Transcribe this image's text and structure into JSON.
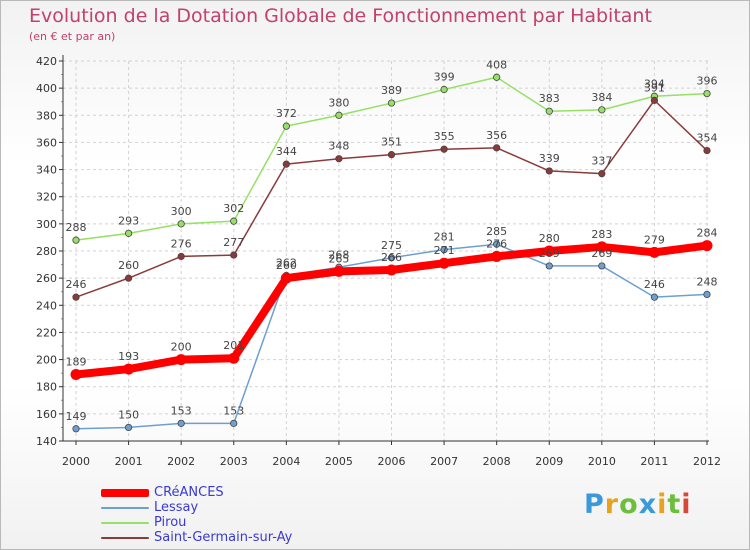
{
  "title": "Evolution de la Dotation Globale de Fonctionnement par Habitant",
  "subtitle": "(en € et par an)",
  "logo_text": "Proxiti",
  "logo_colors": [
    "#3a9ad9",
    "#e8a31e",
    "#6cbf3a",
    "#3a9ad9",
    "#e8a31e",
    "#6cbf3a",
    "#d9463a"
  ],
  "chart_data": {
    "type": "line",
    "title": "Evolution de la Dotation Globale de Fonctionnement par Habitant",
    "subtitle": "(en € et par an)",
    "xlabel": "",
    "ylabel": "",
    "x": [
      "2000",
      "2001",
      "2002",
      "2003",
      "2004",
      "2005",
      "2006",
      "2007",
      "2008",
      "2009",
      "2010",
      "2011",
      "2012"
    ],
    "ylim": [
      140,
      420
    ],
    "yticks": [
      "140",
      "160",
      "180",
      "200",
      "220",
      "240",
      "260",
      "280",
      "300",
      "320",
      "340",
      "360",
      "380",
      "400",
      "420"
    ],
    "grid": true,
    "series": [
      {
        "name": "CRéANCES",
        "color": "#ff0000",
        "width": 8,
        "values": [
          189,
          193,
          200,
          201,
          260,
          265,
          266,
          271,
          276,
          280,
          283,
          279,
          284
        ],
        "labels": [
          "189",
          "193",
          "200",
          "201",
          "260",
          "265",
          "266",
          "271",
          "276",
          "280",
          "283",
          "279",
          "284"
        ]
      },
      {
        "name": "Lessay",
        "color": "#6d9fd1",
        "width": 1.5,
        "values": [
          149,
          150,
          153,
          153,
          262,
          268,
          275,
          281,
          285,
          269,
          269,
          246,
          248
        ],
        "labels": [
          "149",
          "150",
          "153",
          "153",
          "262",
          "268",
          "275",
          "281",
          "285",
          "269",
          "269",
          "246",
          "248"
        ]
      },
      {
        "name": "Pirou",
        "color": "#96e066",
        "width": 1.5,
        "values": [
          288,
          293,
          300,
          302,
          372,
          380,
          389,
          399,
          408,
          383,
          384,
          394,
          396
        ],
        "labels": [
          "288",
          "293",
          "300",
          "302",
          "372",
          "380",
          "389",
          "399",
          "408",
          "383",
          "384",
          "394",
          "396"
        ]
      },
      {
        "name": "Saint-Germain-sur-Ay",
        "color": "#8b3a3a",
        "width": 1.5,
        "values": [
          246,
          260,
          276,
          277,
          344,
          348,
          351,
          355,
          356,
          339,
          337,
          391,
          354
        ],
        "labels": [
          "246",
          "260",
          "276",
          "277",
          "344",
          "348",
          "351",
          "355",
          "356",
          "339",
          "337",
          "391",
          "354"
        ]
      }
    ],
    "legend_position": "bottom-left"
  }
}
